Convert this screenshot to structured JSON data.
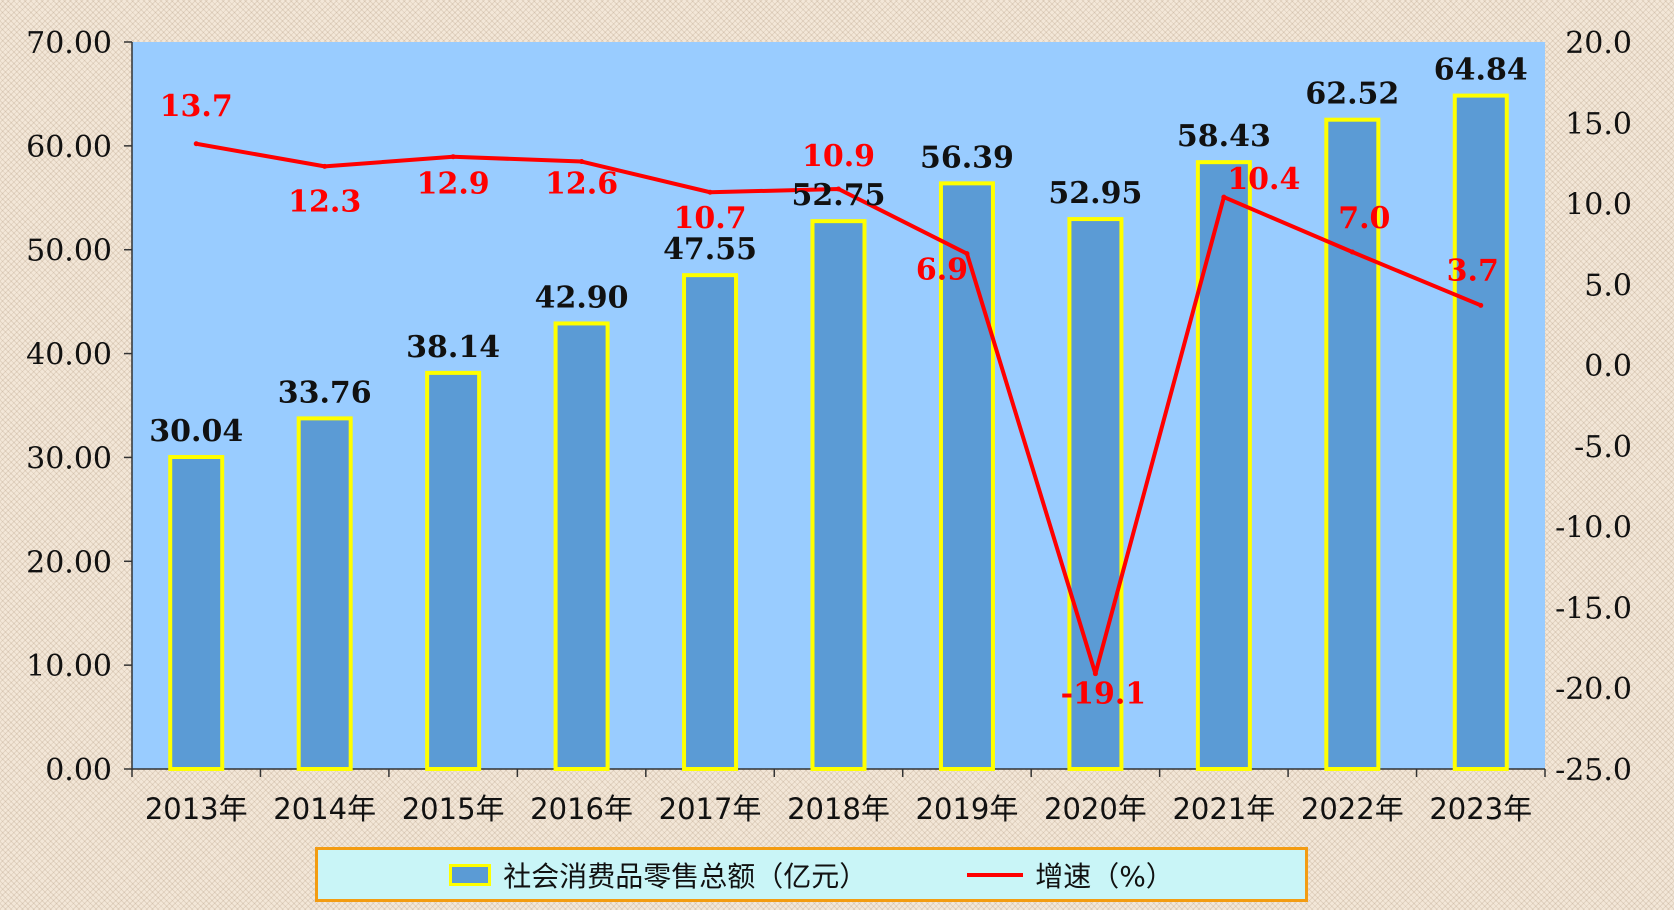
{
  "chart_data": {
    "type": "bar",
    "categories": [
      "2013年",
      "2014年",
      "2015年",
      "2016年",
      "2017年",
      "2018年",
      "2019年",
      "2020年",
      "2021年",
      "2022年",
      "2023年"
    ],
    "series": [
      {
        "name": "社会消费品零售总额（亿元）",
        "type": "bar",
        "axis": "left",
        "values": [
          30.04,
          33.76,
          38.14,
          42.9,
          47.55,
          52.75,
          56.39,
          52.95,
          58.43,
          62.52,
          64.84
        ],
        "labels": [
          "30.04",
          "33.76",
          "38.14",
          "42.90",
          "47.55",
          "52.75",
          "56.39",
          "52.95",
          "58.43",
          "62.52",
          "64.84"
        ]
      },
      {
        "name": "增速（%）",
        "type": "line",
        "axis": "right",
        "values": [
          13.7,
          12.3,
          12.9,
          12.6,
          10.7,
          10.9,
          6.9,
          -19.1,
          10.4,
          7.0,
          3.7
        ],
        "labels": [
          "13.7",
          "12.3",
          "12.9",
          "12.6",
          "10.7",
          "10.9",
          "6.9",
          "-19.1",
          "10.4",
          "7.0",
          "3.7"
        ]
      }
    ],
    "y_left": {
      "ylim": [
        0,
        70
      ],
      "ticks": [
        "0.00",
        "10.00",
        "20.00",
        "30.00",
        "40.00",
        "50.00",
        "60.00",
        "70.00"
      ]
    },
    "y_right": {
      "ylim": [
        -25,
        20
      ],
      "ticks": [
        "-25.0",
        "-20.0",
        "-15.0",
        "-10.0",
        "-5.0",
        "0.0",
        "5.0",
        "10.0",
        "15.0",
        "20.0"
      ]
    },
    "grid": false,
    "legend_position": "bottom",
    "colors": {
      "bar_fill": "#5b9bd5",
      "bar_edge": "#ffff00",
      "line": "#ff0000",
      "plot_bg": "#99ccff",
      "legend_bg": "#c9f5f7",
      "legend_border": "#f39c12",
      "line_label": "#ff0000",
      "bar_label": "#111111"
    }
  },
  "legend": {
    "bar_label": "社会消费品零售总额（亿元）",
    "line_label": "增速（%）"
  }
}
